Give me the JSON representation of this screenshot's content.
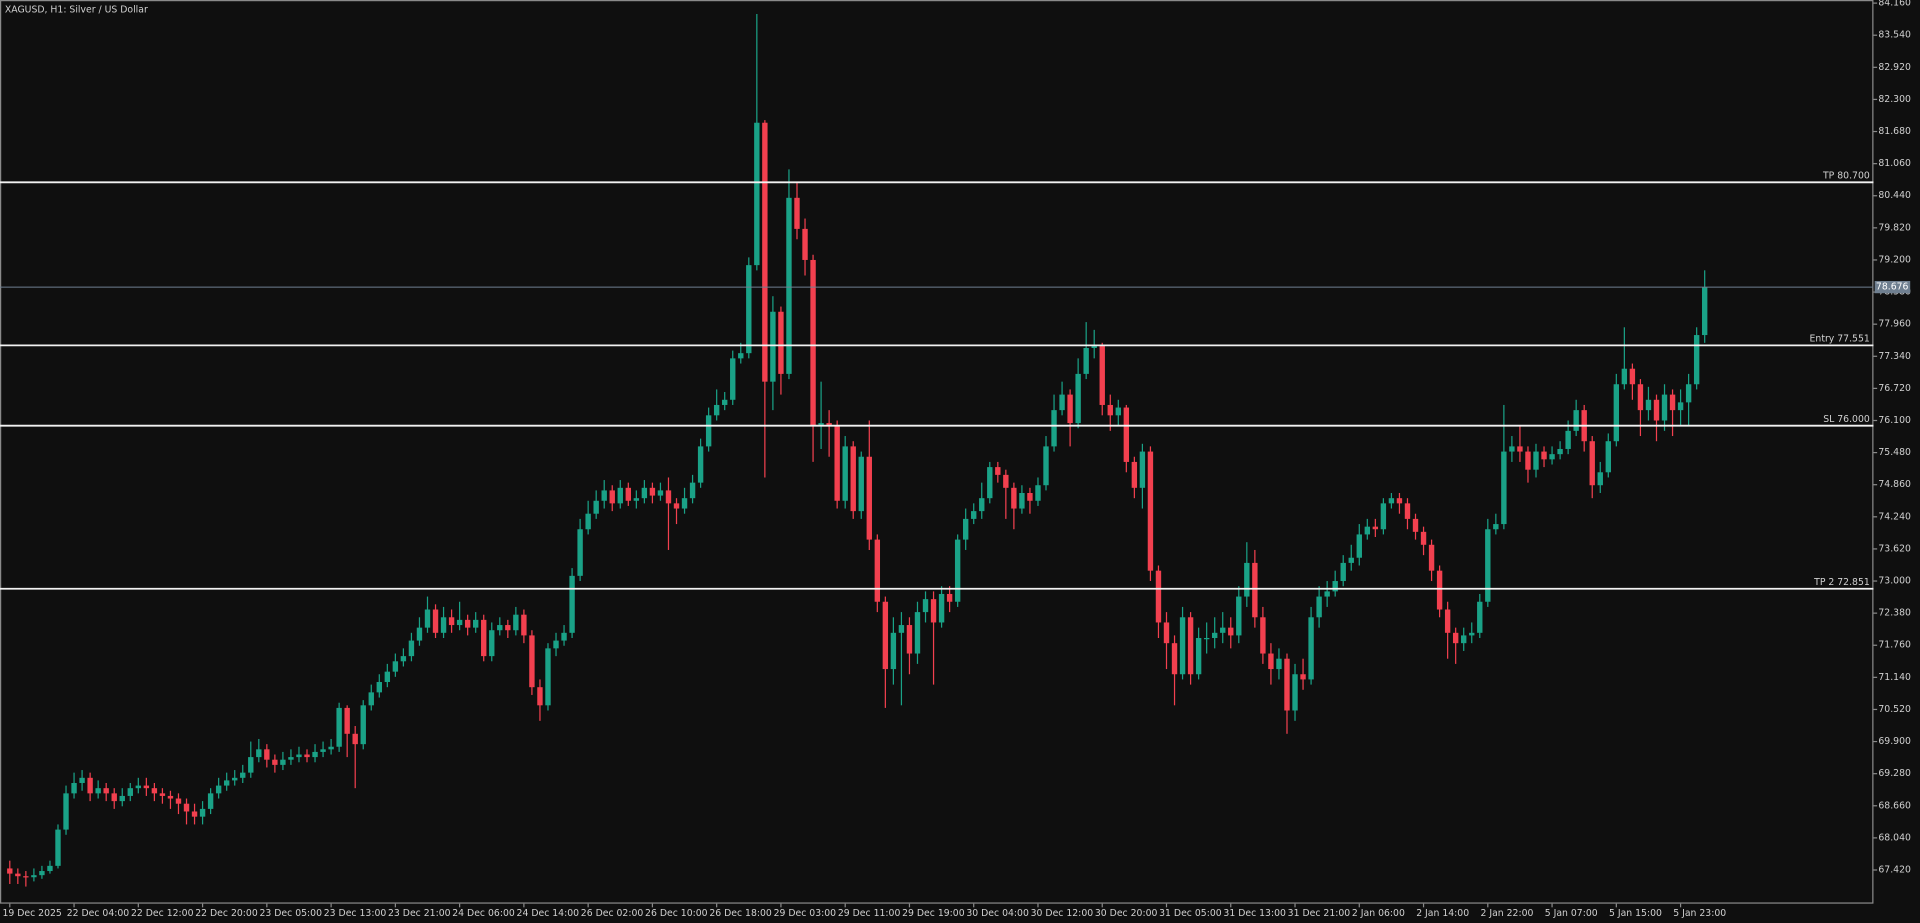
{
  "chart_data": {
    "type": "candlestick",
    "title": "XAGUSD, H1:  Silver / US Dollar",
    "up_color": "#1aa287",
    "down_color": "#f2404f",
    "ylim": [
      66.77,
      84.22
    ],
    "yticks": [
      {
        "value": 84.16,
        "label": "84.160"
      },
      {
        "value": 83.54,
        "label": "83.540"
      },
      {
        "value": 82.92,
        "label": "82.920"
      },
      {
        "value": 82.3,
        "label": "82.300"
      },
      {
        "value": 81.68,
        "label": "81.680"
      },
      {
        "value": 81.06,
        "label": "81.060"
      },
      {
        "value": 80.44,
        "label": "80.440"
      },
      {
        "value": 79.82,
        "label": "79.820"
      },
      {
        "value": 79.2,
        "label": "79.200"
      },
      {
        "value": 78.58,
        "label": "78.580"
      },
      {
        "value": 77.96,
        "label": "77.960"
      },
      {
        "value": 77.34,
        "label": "77.340"
      },
      {
        "value": 76.72,
        "label": "76.720"
      },
      {
        "value": 76.1,
        "label": "76.100"
      },
      {
        "value": 75.48,
        "label": "75.480"
      },
      {
        "value": 74.86,
        "label": "74.860"
      },
      {
        "value": 74.24,
        "label": "74.240"
      },
      {
        "value": 73.62,
        "label": "73.620"
      },
      {
        "value": 73.0,
        "label": "73.000"
      },
      {
        "value": 72.38,
        "label": "72.380"
      },
      {
        "value": 71.76,
        "label": "71.760"
      },
      {
        "value": 71.14,
        "label": "71.140"
      },
      {
        "value": 70.52,
        "label": "70.520"
      },
      {
        "value": 69.9,
        "label": "69.900"
      },
      {
        "value": 69.28,
        "label": "69.280"
      },
      {
        "value": 68.66,
        "label": "68.660"
      },
      {
        "value": 68.04,
        "label": "68.040"
      },
      {
        "value": 67.42,
        "label": "67.420"
      }
    ],
    "last_price": 78.676,
    "levels": [
      {
        "label": "TP 80.700",
        "value": 80.7
      },
      {
        "label": "Entry 77.551",
        "value": 77.551
      },
      {
        "label": "SL 76.000",
        "value": 76.0
      },
      {
        "label": "TP 2 72.851",
        "value": 72.851
      }
    ],
    "categories": [
      "19 Dec 2025",
      null,
      null,
      null,
      null,
      null,
      null,
      null,
      "22 Dec 04:00",
      null,
      null,
      null,
      null,
      null,
      null,
      null,
      "22 Dec 12:00",
      null,
      null,
      null,
      null,
      null,
      null,
      null,
      "22 Dec 20:00",
      null,
      null,
      null,
      null,
      null,
      null,
      null,
      "23 Dec 05:00",
      null,
      null,
      null,
      null,
      null,
      null,
      null,
      "23 Dec 13:00",
      null,
      null,
      null,
      null,
      null,
      null,
      null,
      "23 Dec 21:00",
      null,
      null,
      null,
      null,
      null,
      null,
      null,
      "24 Dec 06:00",
      null,
      null,
      null,
      null,
      null,
      null,
      null,
      "24 Dec 14:00",
      null,
      null,
      null,
      null,
      null,
      null,
      null,
      "26 Dec 02:00",
      null,
      null,
      null,
      null,
      null,
      null,
      null,
      "26 Dec 10:00",
      null,
      null,
      null,
      null,
      null,
      null,
      null,
      "26 Dec 18:00",
      null,
      null,
      null,
      null,
      null,
      null,
      null,
      "29 Dec 03:00",
      null,
      null,
      null,
      null,
      null,
      null,
      null,
      "29 Dec 11:00",
      null,
      null,
      null,
      null,
      null,
      null,
      null,
      "29 Dec 19:00",
      null,
      null,
      null,
      null,
      null,
      null,
      null,
      "30 Dec 04:00",
      null,
      null,
      null,
      null,
      null,
      null,
      null,
      "30 Dec 12:00",
      null,
      null,
      null,
      null,
      null,
      null,
      null,
      "30 Dec 20:00",
      null,
      null,
      null,
      null,
      null,
      null,
      null,
      "31 Dec 05:00",
      null,
      null,
      null,
      null,
      null,
      null,
      null,
      "31 Dec 13:00",
      null,
      null,
      null,
      null,
      null,
      null,
      null,
      "31 Dec 21:00",
      null,
      null,
      null,
      null,
      null,
      null,
      null,
      "2 Jan 06:00",
      null,
      null,
      null,
      null,
      null,
      null,
      null,
      "2 Jan 14:00",
      null,
      null,
      null,
      null,
      null,
      null,
      null,
      "2 Jan 22:00",
      null,
      null,
      null,
      null,
      null,
      null,
      null,
      "5 Jan 07:00",
      null,
      null,
      null,
      null,
      null,
      null,
      null,
      "5 Jan 15:00",
      null,
      null,
      null,
      null,
      null,
      null,
      null,
      "5 Jan 23:00",
      null,
      null,
      null
    ],
    "open": [
      67.45,
      67.35,
      67.3,
      67.28,
      67.32,
      67.4,
      67.5,
      68.2,
      68.9,
      69.1,
      69.2,
      68.9,
      69.0,
      68.9,
      68.75,
      68.85,
      69.0,
      69.05,
      69.0,
      68.9,
      68.85,
      68.8,
      68.7,
      68.55,
      68.45,
      68.6,
      68.9,
      69.05,
      69.15,
      69.2,
      69.3,
      69.6,
      69.75,
      69.55,
      69.45,
      69.55,
      69.6,
      69.65,
      69.6,
      69.7,
      69.75,
      69.8,
      70.55,
      70.05,
      69.85,
      70.6,
      70.85,
      71.05,
      71.25,
      71.45,
      71.55,
      71.85,
      72.1,
      72.45,
      72.0,
      72.3,
      72.15,
      72.25,
      72.1,
      72.25,
      71.55,
      72.05,
      72.15,
      72.05,
      72.35,
      71.95,
      70.95,
      70.6,
      71.7,
      71.85,
      72.0,
      73.1,
      74.0,
      74.3,
      74.55,
      74.75,
      74.5,
      74.8,
      74.55,
      74.6,
      74.8,
      74.65,
      74.75,
      74.5,
      74.4,
      74.6,
      74.9,
      75.6,
      76.2,
      76.4,
      76.5,
      77.3,
      77.4,
      79.1,
      81.85,
      76.85,
      78.2,
      77.0,
      80.4,
      79.8,
      79.2,
      76.0,
      76.05,
      76.0,
      74.55,
      75.6,
      74.35,
      75.4,
      73.8,
      72.6,
      71.3,
      72.0,
      72.15,
      71.6,
      72.4,
      72.65,
      72.2,
      72.75,
      72.6,
      73.8,
      74.2,
      74.35,
      74.6,
      75.2,
      75.05,
      74.8,
      74.4,
      74.7,
      74.55,
      74.85,
      75.6,
      76.3,
      76.6,
      76.05,
      77.0,
      77.5,
      77.55,
      76.4,
      76.2,
      76.35,
      75.3,
      74.8,
      75.5,
      73.2,
      72.2,
      71.8,
      71.2,
      72.3,
      71.2,
      71.9,
      71.9,
      72.0,
      72.1,
      71.95,
      72.7,
      73.35,
      72.3,
      71.6,
      71.3,
      71.5,
      70.5,
      71.2,
      71.1,
      72.3,
      72.7,
      72.8,
      73.0,
      73.35,
      73.45,
      73.9,
      74.05,
      74.0,
      74.5,
      74.6,
      74.5,
      74.2,
      73.95,
      73.7,
      73.2,
      72.45,
      72.0,
      71.8,
      71.95,
      72.0,
      72.6,
      74.0,
      74.1,
      75.5,
      75.6,
      75.5,
      75.15,
      75.5,
      75.35,
      75.45,
      75.55,
      75.9,
      76.3,
      75.7,
      74.85,
      75.1,
      75.7,
      76.8,
      77.1,
      76.8,
      76.3,
      76.5,
      76.1,
      76.6,
      76.3,
      76.45,
      76.8,
      77.75
    ],
    "high": [
      67.6,
      67.45,
      67.4,
      67.45,
      67.5,
      67.6,
      68.3,
      69.05,
      69.3,
      69.35,
      69.3,
      69.15,
      69.1,
      69.0,
      69.0,
      69.1,
      69.2,
      69.2,
      69.1,
      69.0,
      68.95,
      68.9,
      68.8,
      68.7,
      68.75,
      69.0,
      69.2,
      69.3,
      69.35,
      69.45,
      69.9,
      69.95,
      69.85,
      69.65,
      69.7,
      69.75,
      69.8,
      69.75,
      69.85,
      69.9,
      69.95,
      70.65,
      70.6,
      70.2,
      70.7,
      71.0,
      71.2,
      71.4,
      71.6,
      71.7,
      72.0,
      72.3,
      72.7,
      72.55,
      72.5,
      72.45,
      72.6,
      72.35,
      72.4,
      72.35,
      72.2,
      72.3,
      72.25,
      72.5,
      72.45,
      72.05,
      71.1,
      71.8,
      72.0,
      72.15,
      73.25,
      74.2,
      74.55,
      74.75,
      74.95,
      74.85,
      74.95,
      74.9,
      74.75,
      74.95,
      74.9,
      74.9,
      75.0,
      74.6,
      74.8,
      75.05,
      75.75,
      76.35,
      76.7,
      76.65,
      77.45,
      77.6,
      79.25,
      83.95,
      81.9,
      78.5,
      78.3,
      80.95,
      80.7,
      80.0,
      79.3,
      76.85,
      76.3,
      76.1,
      75.8,
      75.7,
      75.5,
      76.1,
      73.9,
      72.7,
      72.3,
      72.4,
      72.3,
      72.6,
      72.8,
      72.8,
      72.9,
      72.9,
      73.9,
      74.4,
      74.5,
      74.9,
      75.3,
      75.3,
      75.15,
      74.9,
      74.85,
      74.8,
      75.0,
      75.8,
      76.6,
      76.85,
      76.7,
      77.3,
      78.0,
      77.85,
      77.6,
      76.6,
      76.5,
      76.4,
      75.4,
      75.65,
      75.6,
      73.3,
      72.4,
      71.95,
      72.5,
      72.4,
      72.1,
      72.2,
      72.3,
      72.4,
      72.3,
      72.9,
      73.75,
      73.6,
      72.5,
      71.8,
      71.7,
      71.6,
      71.4,
      71.5,
      72.5,
      72.9,
      73.0,
      73.2,
      73.5,
      73.7,
      74.1,
      74.2,
      74.2,
      74.6,
      74.7,
      74.7,
      74.6,
      74.3,
      74.05,
      73.8,
      73.3,
      72.6,
      72.1,
      72.1,
      72.2,
      72.75,
      74.2,
      74.3,
      76.4,
      75.8,
      76.0,
      75.6,
      75.65,
      75.6,
      75.6,
      75.7,
      76.1,
      76.5,
      76.4,
      75.8,
      75.3,
      75.85,
      77.0,
      77.9,
      77.2,
      76.9,
      76.75,
      76.6,
      76.8,
      76.7,
      76.7,
      77.0,
      77.9,
      79.0
    ],
    "low": [
      67.15,
      67.15,
      67.1,
      67.2,
      67.25,
      67.35,
      67.45,
      68.1,
      68.8,
      68.95,
      68.75,
      68.8,
      68.75,
      68.6,
      68.65,
      68.75,
      68.9,
      68.85,
      68.75,
      68.7,
      68.6,
      68.5,
      68.3,
      68.3,
      68.3,
      68.5,
      68.8,
      68.95,
      69.05,
      69.1,
      69.2,
      69.5,
      69.4,
      69.3,
      69.35,
      69.45,
      69.5,
      69.5,
      69.5,
      69.6,
      69.65,
      69.7,
      69.6,
      69.0,
      69.75,
      70.5,
      70.75,
      70.95,
      71.15,
      71.35,
      71.45,
      71.75,
      72.0,
      71.9,
      71.9,
      72.0,
      72.05,
      71.95,
      72.0,
      71.45,
      71.45,
      71.95,
      71.9,
      71.95,
      71.8,
      70.8,
      70.3,
      70.5,
      71.55,
      71.75,
      71.9,
      73.0,
      73.9,
      74.2,
      74.4,
      74.35,
      74.4,
      74.45,
      74.4,
      74.5,
      74.5,
      74.55,
      73.6,
      74.1,
      74.3,
      74.5,
      74.8,
      75.5,
      76.1,
      76.3,
      76.4,
      77.2,
      77.3,
      79.0,
      75.0,
      76.3,
      76.6,
      76.9,
      79.6,
      78.9,
      75.3,
      75.55,
      75.4,
      74.4,
      74.4,
      74.2,
      74.2,
      73.6,
      72.4,
      70.55,
      71.0,
      70.6,
      71.2,
      71.4,
      72.2,
      71.0,
      72.1,
      72.4,
      72.5,
      73.6,
      74.1,
      74.2,
      74.5,
      74.9,
      74.2,
      74.0,
      74.3,
      74.3,
      74.45,
      74.75,
      75.5,
      76.2,
      75.6,
      75.95,
      76.9,
      77.3,
      76.2,
      75.9,
      76.0,
      75.1,
      74.6,
      74.4,
      73.0,
      71.9,
      71.3,
      70.6,
      71.1,
      71.0,
      71.1,
      71.6,
      71.7,
      71.8,
      71.7,
      71.8,
      72.5,
      72.1,
      71.4,
      71.0,
      71.1,
      70.05,
      70.3,
      70.9,
      71.0,
      72.1,
      72.5,
      72.7,
      72.9,
      73.2,
      73.3,
      73.8,
      73.85,
      73.9,
      74.4,
      74.3,
      74.0,
      73.8,
      73.5,
      73.0,
      72.3,
      71.5,
      71.4,
      71.65,
      71.8,
      71.9,
      72.5,
      73.9,
      74.0,
      75.3,
      75.3,
      74.9,
      75.0,
      75.2,
      75.25,
      75.35,
      75.45,
      75.8,
      75.5,
      74.6,
      74.7,
      75.0,
      75.6,
      76.7,
      76.5,
      75.8,
      76.1,
      75.7,
      75.9,
      75.8,
      76.0,
      76.0,
      76.7,
      77.6
    ],
    "close": [
      67.35,
      67.3,
      67.28,
      67.32,
      67.4,
      67.5,
      68.2,
      68.9,
      69.1,
      69.2,
      68.9,
      69.0,
      68.9,
      68.75,
      68.85,
      69.0,
      69.05,
      69.0,
      68.9,
      68.85,
      68.8,
      68.7,
      68.55,
      68.45,
      68.6,
      68.9,
      69.05,
      69.15,
      69.2,
      69.3,
      69.6,
      69.75,
      69.55,
      69.45,
      69.55,
      69.6,
      69.65,
      69.6,
      69.7,
      69.75,
      69.8,
      70.55,
      70.05,
      69.85,
      70.6,
      70.85,
      71.05,
      71.25,
      71.45,
      71.55,
      71.85,
      72.1,
      72.45,
      72.0,
      72.3,
      72.15,
      72.25,
      72.1,
      72.25,
      71.55,
      72.05,
      72.15,
      72.05,
      72.35,
      71.95,
      70.95,
      70.6,
      71.7,
      71.85,
      72.0,
      73.1,
      74.0,
      74.3,
      74.55,
      74.75,
      74.5,
      74.8,
      74.55,
      74.6,
      74.8,
      74.65,
      74.75,
      74.5,
      74.4,
      74.6,
      74.9,
      75.6,
      76.2,
      76.4,
      76.5,
      77.3,
      77.4,
      79.1,
      81.85,
      76.85,
      78.2,
      77.0,
      80.4,
      79.8,
      79.2,
      76.0,
      76.05,
      76.0,
      74.55,
      75.6,
      74.35,
      75.4,
      73.8,
      72.6,
      71.3,
      72.0,
      72.15,
      71.6,
      72.4,
      72.65,
      72.2,
      72.75,
      72.6,
      73.8,
      74.2,
      74.35,
      74.6,
      75.2,
      75.05,
      74.8,
      74.4,
      74.7,
      74.55,
      74.85,
      75.6,
      76.3,
      76.6,
      76.05,
      77.0,
      77.5,
      77.55,
      76.4,
      76.2,
      76.35,
      75.3,
      74.8,
      75.5,
      73.2,
      72.2,
      71.8,
      71.2,
      72.3,
      71.2,
      71.9,
      71.9,
      72.0,
      72.1,
      71.95,
      72.7,
      73.35,
      72.3,
      71.6,
      71.3,
      71.5,
      70.5,
      71.2,
      71.1,
      72.3,
      72.7,
      72.8,
      73.0,
      73.35,
      73.45,
      73.9,
      74.05,
      74.0,
      74.5,
      74.6,
      74.5,
      74.2,
      73.95,
      73.7,
      73.2,
      72.45,
      72.0,
      71.8,
      71.95,
      72.0,
      72.6,
      74.0,
      74.1,
      75.5,
      75.6,
      75.5,
      75.15,
      75.5,
      75.35,
      75.45,
      75.55,
      75.9,
      76.3,
      75.7,
      74.85,
      75.1,
      75.7,
      76.8,
      77.1,
      76.8,
      76.3,
      76.5,
      76.1,
      76.6,
      76.3,
      76.45,
      76.8,
      77.75,
      78.676
    ]
  }
}
